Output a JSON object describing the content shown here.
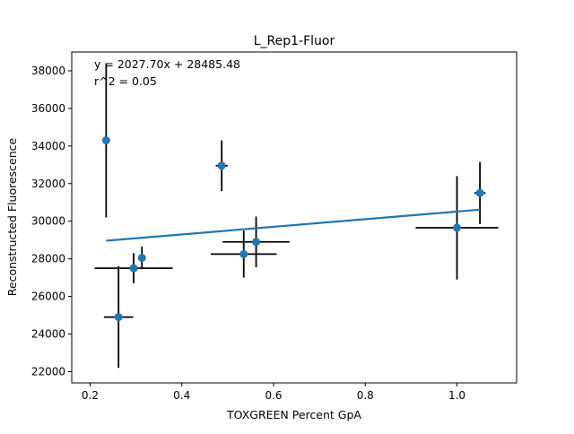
{
  "chart_data": {
    "type": "scatter",
    "title": "L_Rep1-Fluor",
    "xlabel": "TOXGREEN Percent GpA",
    "ylabel": "Reconstructed Fluorescence",
    "xlim": [
      0.16,
      1.13
    ],
    "ylim": [
      21400,
      39000
    ],
    "xticks": [
      0.2,
      0.4,
      0.6,
      0.8,
      1.0
    ],
    "xtick_labels": [
      "0.2",
      "0.4",
      "0.6",
      "0.8",
      "1.0"
    ],
    "yticks": [
      22000,
      24000,
      26000,
      28000,
      30000,
      32000,
      34000,
      36000,
      38000
    ],
    "ytick_labels": [
      "22000",
      "24000",
      "26000",
      "28000",
      "30000",
      "32000",
      "34000",
      "36000",
      "38000"
    ],
    "grid": false,
    "annotations": [
      "y = 2027.70x + 28485.48",
      "r^2 = 0.05"
    ],
    "fit": {
      "slope": 2027.7,
      "intercept": 28485.48,
      "x_range": [
        0.235,
        1.05
      ]
    },
    "points": [
      {
        "x": 0.235,
        "y": 34300,
        "xerr": 0.0,
        "yerr": 4100
      },
      {
        "x": 0.262,
        "y": 24900,
        "xerr": 0.032,
        "yerr": 2700
      },
      {
        "x": 0.295,
        "y": 27500,
        "xerr": 0.085,
        "yerr": 800
      },
      {
        "x": 0.313,
        "y": 28050,
        "xerr": 0.0,
        "yerr": 600
      },
      {
        "x": 0.487,
        "y": 32950,
        "xerr": 0.013,
        "yerr": 1350
      },
      {
        "x": 0.535,
        "y": 28250,
        "xerr": 0.072,
        "yerr": 1250
      },
      {
        "x": 0.562,
        "y": 28900,
        "xerr": 0.073,
        "yerr": 1350
      },
      {
        "x": 1.0,
        "y": 29650,
        "xerr": 0.09,
        "yerr": 2750
      },
      {
        "x": 1.05,
        "y": 31500,
        "xerr": 0.012,
        "yerr": 1650
      }
    ],
    "colors": {
      "marker": "#1f77b4",
      "fit": "#1f77b4",
      "errorbar": "#000000"
    }
  }
}
